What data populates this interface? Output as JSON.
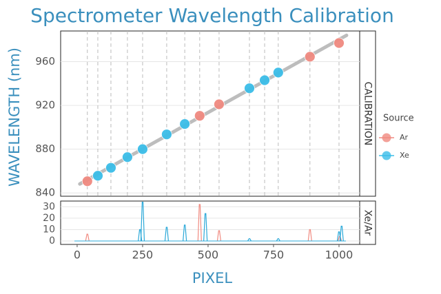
{
  "chart_data": [
    {
      "type": "scatter",
      "title": "Spectrometer Wavelength Calibration",
      "ylabel": "WAVELENGTH (nm)",
      "strip": "CALIBRATION",
      "legend_title": "Source",
      "series": [
        {
          "name": "Ar",
          "color": "#f08a80",
          "x": [
            39,
            468,
            542,
            889,
            1000
          ],
          "values": [
            850.7,
            910.5,
            921,
            964.5,
            977
          ]
        },
        {
          "name": "Xe",
          "color": "#3bbde8",
          "x": [
            79,
            129,
            192,
            250,
            342,
            411,
            658,
            716,
            768
          ],
          "values": [
            855.7,
            863,
            872.7,
            880,
            893.5,
            903,
            935.6,
            943,
            950
          ]
        }
      ],
      "xlim": [
        -63,
        1079
      ],
      "ylim": [
        837,
        988
      ],
      "yticks": [
        840,
        880,
        920,
        960
      ]
    },
    {
      "type": "spectrum",
      "xlabel": "PIXEL",
      "strip": "Xe/Ar",
      "series": [
        {
          "name": "Ar",
          "color": "#f08a80",
          "x": [
            39,
            468,
            542,
            889,
            1003
          ],
          "values": [
            6,
            32,
            9,
            10,
            4
          ]
        },
        {
          "name": "Xe",
          "color": "#2aa8d8",
          "x": [
            240,
            250,
            342,
            411,
            490,
            658,
            768,
            1000,
            1010
          ],
          "values": [
            10,
            34,
            12,
            14,
            24,
            2,
            2,
            8,
            13
          ]
        }
      ],
      "xlim": [
        -63,
        1079
      ],
      "ylim": [
        -3,
        35
      ],
      "xticks": [
        0,
        250,
        500,
        750,
        1000
      ],
      "yticks": [
        0,
        10,
        20,
        30
      ]
    }
  ]
}
